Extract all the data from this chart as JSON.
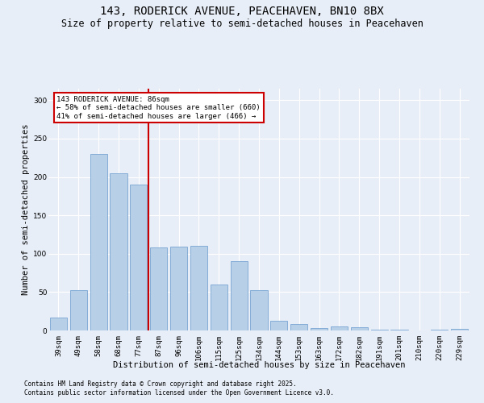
{
  "title": "143, RODERICK AVENUE, PEACEHAVEN, BN10 8BX",
  "subtitle": "Size of property relative to semi-detached houses in Peacehaven",
  "xlabel": "Distribution of semi-detached houses by size in Peacehaven",
  "ylabel": "Number of semi-detached properties",
  "categories": [
    "39sqm",
    "49sqm",
    "58sqm",
    "68sqm",
    "77sqm",
    "87sqm",
    "96sqm",
    "106sqm",
    "115sqm",
    "125sqm",
    "134sqm",
    "144sqm",
    "153sqm",
    "163sqm",
    "172sqm",
    "182sqm",
    "191sqm",
    "201sqm",
    "210sqm",
    "220sqm",
    "229sqm"
  ],
  "values": [
    17,
    52,
    230,
    205,
    190,
    108,
    109,
    110,
    60,
    90,
    52,
    13,
    8,
    3,
    5,
    4,
    1,
    1,
    0,
    1,
    2
  ],
  "bar_color": "#b8cfe8",
  "bar_edge_color": "#6699cc",
  "highlight_line_color": "#cc0000",
  "annotation_text": "143 RODERICK AVENUE: 86sqm\n← 58% of semi-detached houses are smaller (660)\n41% of semi-detached houses are larger (466) →",
  "annotation_box_color": "#ffffff",
  "annotation_box_edge": "#cc0000",
  "ylim": [
    0,
    315
  ],
  "yticks": [
    0,
    50,
    100,
    150,
    200,
    250,
    300
  ],
  "background_color": "#e8eef7",
  "plot_bg_color": "#e8eef7",
  "footer_line1": "Contains HM Land Registry data © Crown copyright and database right 2025.",
  "footer_line2": "Contains public sector information licensed under the Open Government Licence v3.0.",
  "title_fontsize": 10,
  "subtitle_fontsize": 8.5,
  "axis_label_fontsize": 7.5,
  "tick_fontsize": 6.5,
  "footer_fontsize": 5.5
}
